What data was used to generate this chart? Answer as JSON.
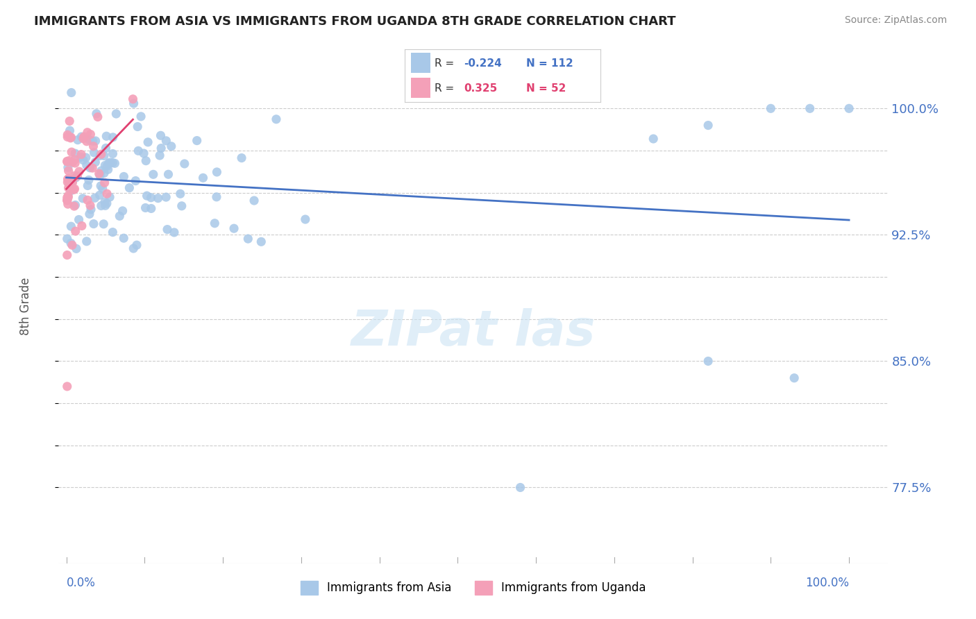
{
  "title": "IMMIGRANTS FROM ASIA VS IMMIGRANTS FROM UGANDA 8TH GRADE CORRELATION CHART",
  "source": "Source: ZipAtlas.com",
  "ylabel": "8th Grade",
  "asia_color": "#a8c8e8",
  "uganda_color": "#f4a0b8",
  "asia_line_color": "#4472c4",
  "uganda_line_color": "#e04070",
  "asia_R": -0.224,
  "asia_N": 112,
  "uganda_R": 0.325,
  "uganda_N": 52,
  "ylim": [
    0.73,
    1.035
  ],
  "xlim": [
    -0.01,
    1.05
  ],
  "ytick_vals": [
    0.775,
    0.8,
    0.825,
    0.85,
    0.875,
    0.9,
    0.925,
    0.95,
    0.975,
    1.0
  ],
  "ytick_labels_map": {
    "0.775": "77.5%",
    "0.850": "85.0%",
    "0.925": "92.5%",
    "1.000": "100.0%"
  },
  "watermark_text": "ZIPat las",
  "watermark_color": "#cce4f4",
  "legend_label_asia": "Immigrants from Asia",
  "legend_label_uganda": "Immigrants from Uganda"
}
